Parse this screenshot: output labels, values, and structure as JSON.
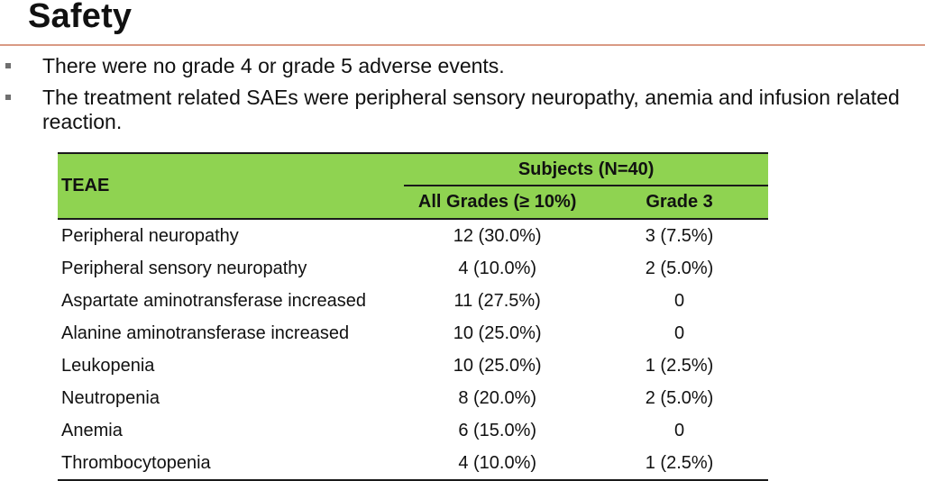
{
  "slide": {
    "title": "Safety",
    "bullets": [
      "There were no grade 4 or grade 5 adverse events.",
      "The treatment related SAEs were peripheral sensory neuropathy, anemia and infusion related reaction."
    ]
  },
  "colors": {
    "title_rule": "#d99a84",
    "table_header_bg": "#8fd351"
  },
  "table": {
    "row_header": "TEAE",
    "group_header": "Subjects (N=40)",
    "columns": [
      "All Grades (≥ 10%)",
      "Grade 3"
    ],
    "rows": [
      [
        "Peripheral neuropathy",
        "12 (30.0%)",
        "3 (7.5%)"
      ],
      [
        "Peripheral sensory neuropathy",
        "4 (10.0%)",
        "2 (5.0%)"
      ],
      [
        "Aspartate aminotransferase increased",
        "11 (27.5%)",
        "0"
      ],
      [
        "Alanine aminotransferase increased",
        "10 (25.0%)",
        "0"
      ],
      [
        "Leukopenia",
        "10 (25.0%)",
        "1 (2.5%)"
      ],
      [
        "Neutropenia",
        "8 (20.0%)",
        "2 (5.0%)"
      ],
      [
        "Anemia",
        "6 (15.0%)",
        "0"
      ],
      [
        "Thrombocytopenia",
        "4 (10.0%)",
        "1 (2.5%)"
      ]
    ]
  }
}
